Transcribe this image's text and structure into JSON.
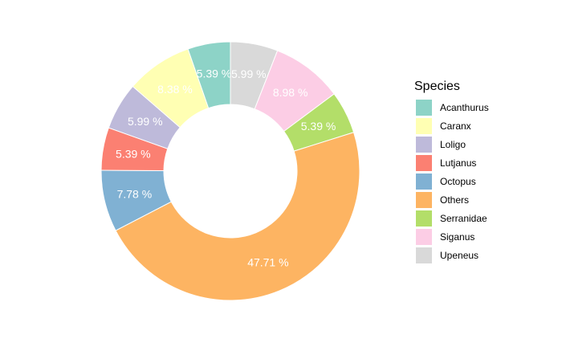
{
  "chart_data": {
    "type": "pie",
    "donut": true,
    "start": "top, clockwise",
    "legend": {
      "title": "Species",
      "position": "right"
    },
    "slices": [
      {
        "name": "Upeneus",
        "value": 5.99,
        "label": "5.99 %",
        "color": "#D9D9D9"
      },
      {
        "name": "Siganus",
        "value": 8.98,
        "label": "8.98 %",
        "color": "#FCCDE5"
      },
      {
        "name": "Serranidae",
        "value": 5.39,
        "label": "5.39 %",
        "color": "#B3DE69"
      },
      {
        "name": "Others",
        "value": 47.71,
        "label": "47.71 %",
        "color": "#FDB462"
      },
      {
        "name": "Octopus",
        "value": 7.78,
        "label": "7.78 %",
        "color": "#80B1D3"
      },
      {
        "name": "Lutjanus",
        "value": 5.39,
        "label": "5.39 %",
        "color": "#FB8072"
      },
      {
        "name": "Loligo",
        "value": 5.99,
        "label": "5.99 %",
        "color": "#BEBADA"
      },
      {
        "name": "Caranx",
        "value": 8.38,
        "label": "8.38 %",
        "color": "#FFFFB3"
      },
      {
        "name": "Acanthurus",
        "value": 5.39,
        "label": "5.39 %",
        "color": "#8DD3C7"
      }
    ],
    "legend_order": [
      "Acanthurus",
      "Caranx",
      "Loligo",
      "Lutjanus",
      "Octopus",
      "Others",
      "Serranidae",
      "Siganus",
      "Upeneus"
    ]
  }
}
